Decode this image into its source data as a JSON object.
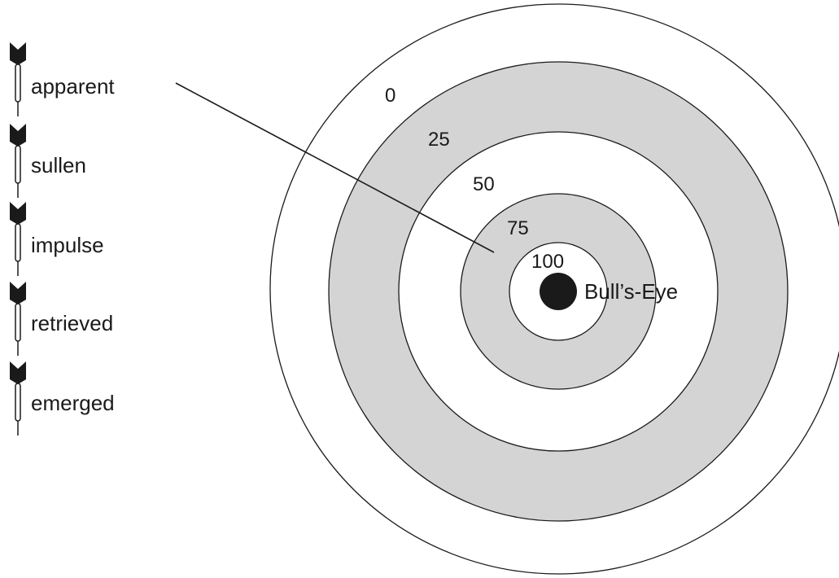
{
  "words": [
    "apparent",
    "sullen",
    "impulse",
    "retrieved",
    "emerged"
  ],
  "rings": [
    {
      "score": "0",
      "fill": "#ffffff"
    },
    {
      "score": "25",
      "fill": "#d4d4d4"
    },
    {
      "score": "50",
      "fill": "#ffffff"
    },
    {
      "score": "75",
      "fill": "#d4d4d4"
    },
    {
      "score": "100",
      "fill": "#ffffff"
    }
  ],
  "bullseye": {
    "label": "Bull’s-Eye",
    "color": "#1a1a1a"
  },
  "colors": {
    "ring_gray": "#d4d4d4",
    "stroke": "#1a1a1a"
  },
  "dart_icon": "dart-icon"
}
